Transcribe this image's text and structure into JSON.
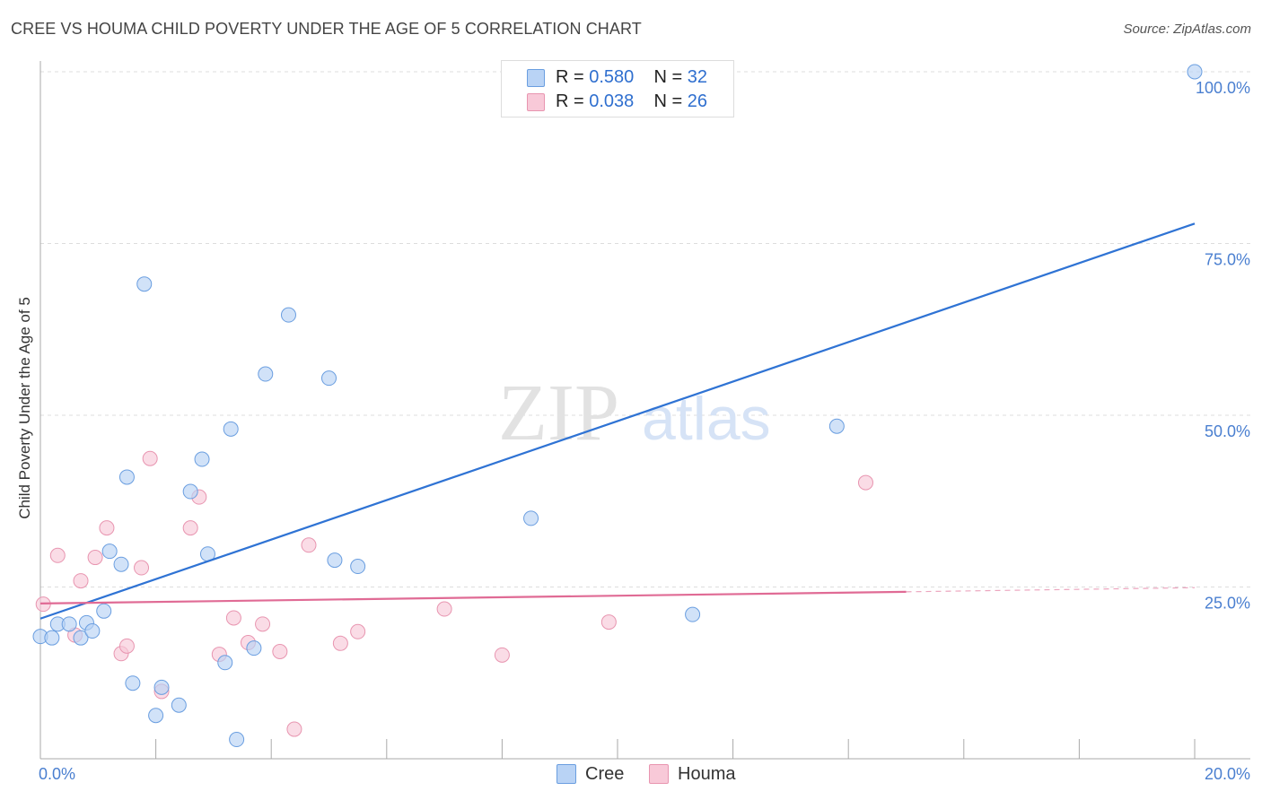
{
  "header": {
    "title": "CREE VS HOUMA CHILD POVERTY UNDER THE AGE OF 5 CORRELATION CHART",
    "source": "Source: ZipAtlas.com"
  },
  "watermark": {
    "zip": "ZIP",
    "atlas": "atlas"
  },
  "legend_top": {
    "cree": {
      "r_label": "R = ",
      "r_value": "0.580",
      "n_label": "N = ",
      "n_value": "32"
    },
    "houma": {
      "r_label": "R = ",
      "r_value": "0.038",
      "n_label": "N = ",
      "n_value": "26"
    }
  },
  "legend_bottom": {
    "cree": "Cree",
    "houma": "Houma"
  },
  "colors": {
    "cree_fill": "#b9d3f5",
    "cree_stroke": "#6a9ee0",
    "cree_line": "#2f73d4",
    "houma_fill": "#f8c9d8",
    "houma_stroke": "#e895b0",
    "houma_line": "#e06b95",
    "tick": "#4a7fd0",
    "grid": "#dddddd"
  },
  "chart_data": {
    "type": "scatter",
    "title": "CREE VS HOUMA CHILD POVERTY UNDER THE AGE OF 5 CORRELATION CHART",
    "xlabel": "",
    "ylabel": "Child Poverty Under the Age of 5",
    "xlim": [
      0,
      20
    ],
    "ylim": [
      0,
      100
    ],
    "x_ticks": [
      "0.0%",
      "20.0%"
    ],
    "y_ticks": [
      "25.0%",
      "50.0%",
      "75.0%",
      "100.0%"
    ],
    "grid": "horizontal dashed",
    "legend_position": "top-center",
    "series": [
      {
        "name": "Cree",
        "r": 0.58,
        "n": 32,
        "points": [
          [
            0.0,
            17.8
          ],
          [
            0.2,
            17.6
          ],
          [
            0.3,
            19.6
          ],
          [
            0.5,
            19.6
          ],
          [
            0.7,
            17.6
          ],
          [
            0.8,
            19.8
          ],
          [
            0.9,
            18.6
          ],
          [
            1.1,
            21.5
          ],
          [
            1.2,
            30.2
          ],
          [
            1.4,
            28.3
          ],
          [
            1.5,
            41.0
          ],
          [
            1.6,
            11.0
          ],
          [
            1.8,
            69.1
          ],
          [
            2.0,
            6.3
          ],
          [
            2.1,
            10.4
          ],
          [
            2.4,
            7.8
          ],
          [
            2.6,
            38.9
          ],
          [
            2.8,
            43.6
          ],
          [
            2.9,
            29.8
          ],
          [
            3.2,
            14.0
          ],
          [
            3.3,
            48.0
          ],
          [
            3.4,
            2.8
          ],
          [
            3.7,
            16.1
          ],
          [
            3.9,
            56.0
          ],
          [
            4.3,
            64.6
          ],
          [
            5.0,
            55.4
          ],
          [
            5.1,
            28.9
          ],
          [
            5.5,
            28.0
          ],
          [
            8.5,
            35.0
          ],
          [
            11.3,
            21.0
          ],
          [
            13.8,
            48.4
          ],
          [
            20.0,
            100.0
          ]
        ],
        "trend": {
          "x": [
            0.0,
            20.0
          ],
          "y": [
            20.4,
            77.9
          ]
        }
      },
      {
        "name": "Houma",
        "r": 0.038,
        "n": 26,
        "points": [
          [
            0.05,
            22.5
          ],
          [
            0.3,
            29.6
          ],
          [
            0.6,
            18.0
          ],
          [
            0.7,
            25.9
          ],
          [
            0.95,
            29.3
          ],
          [
            1.15,
            33.6
          ],
          [
            1.4,
            15.3
          ],
          [
            1.5,
            16.4
          ],
          [
            1.75,
            27.8
          ],
          [
            1.9,
            43.7
          ],
          [
            2.1,
            9.8
          ],
          [
            2.6,
            33.6
          ],
          [
            2.75,
            38.1
          ],
          [
            3.1,
            15.2
          ],
          [
            3.35,
            20.5
          ],
          [
            3.6,
            16.9
          ],
          [
            3.85,
            19.6
          ],
          [
            4.15,
            15.6
          ],
          [
            4.4,
            4.3
          ],
          [
            4.65,
            31.1
          ],
          [
            5.2,
            16.8
          ],
          [
            5.5,
            18.5
          ],
          [
            7.0,
            21.8
          ],
          [
            8.0,
            15.1
          ],
          [
            9.85,
            19.9
          ],
          [
            14.3,
            40.2
          ]
        ],
        "trend": {
          "x": [
            0.0,
            15.0
          ],
          "y": [
            22.6,
            24.3
          ]
        },
        "trend_dashed_to": {
          "x": 20.0,
          "y": 24.9
        }
      }
    ]
  }
}
